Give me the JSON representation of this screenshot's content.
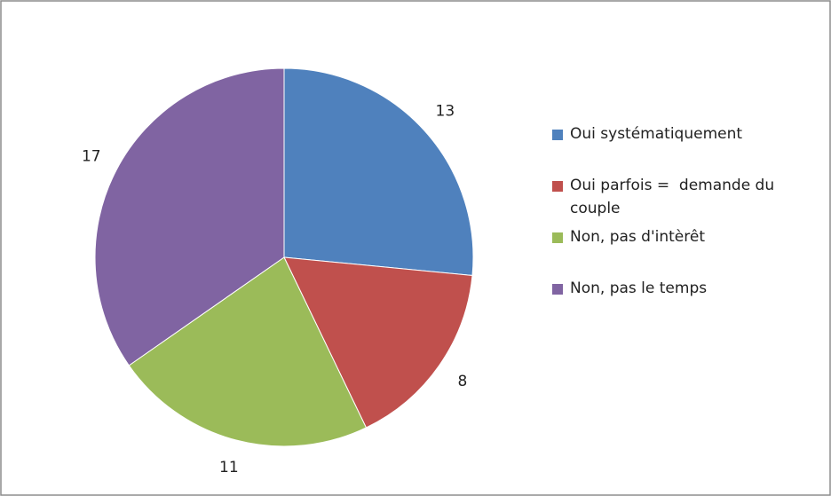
{
  "chart_data": {
    "type": "pie",
    "categories": [
      "Oui systématiquement",
      "Oui parfois =  demande du couple",
      "Non, pas d'intèrêt",
      "Non, pas le temps"
    ],
    "values": [
      13,
      8,
      11,
      17
    ],
    "colors": [
      "#4f81bd",
      "#c0504d",
      "#9bbb59",
      "#8064a2"
    ]
  }
}
